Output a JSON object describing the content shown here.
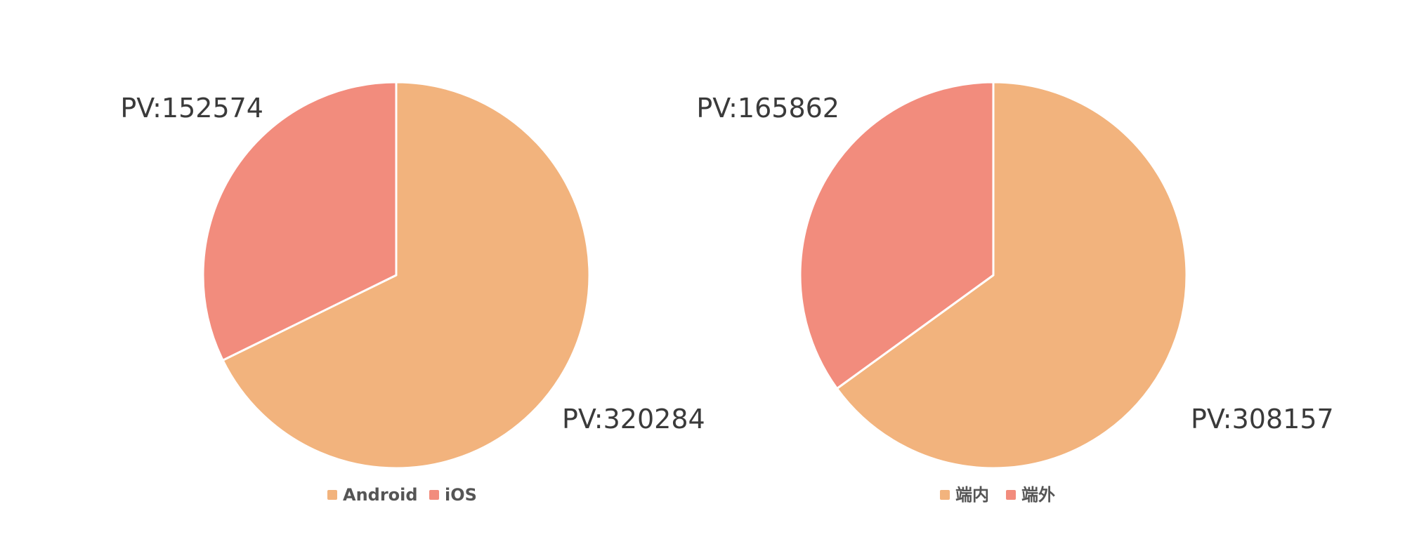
{
  "colors": {
    "primary_slice": "#F2B37D",
    "secondary_slice": "#F28C7D",
    "separator": "#ffffff"
  },
  "chart_data": [
    {
      "type": "pie",
      "title": "",
      "categories": [
        "Android",
        "iOS"
      ],
      "values": [
        320284,
        152574
      ],
      "labels": [
        "PV:320284",
        "PV:152574"
      ],
      "colors": [
        "#F2B37D",
        "#F28C7D"
      ],
      "start_angle": "12 o'clock",
      "direction": "clockwise",
      "legend": "bottom-center"
    },
    {
      "type": "pie",
      "title": "",
      "categories": [
        "端内",
        "端外"
      ],
      "values": [
        308157,
        165862
      ],
      "labels": [
        "PV:308157",
        "PV:165862"
      ],
      "colors": [
        "#F2B37D",
        "#F28C7D"
      ],
      "start_angle": "12 o'clock",
      "direction": "clockwise",
      "legend": "bottom-center"
    }
  ]
}
